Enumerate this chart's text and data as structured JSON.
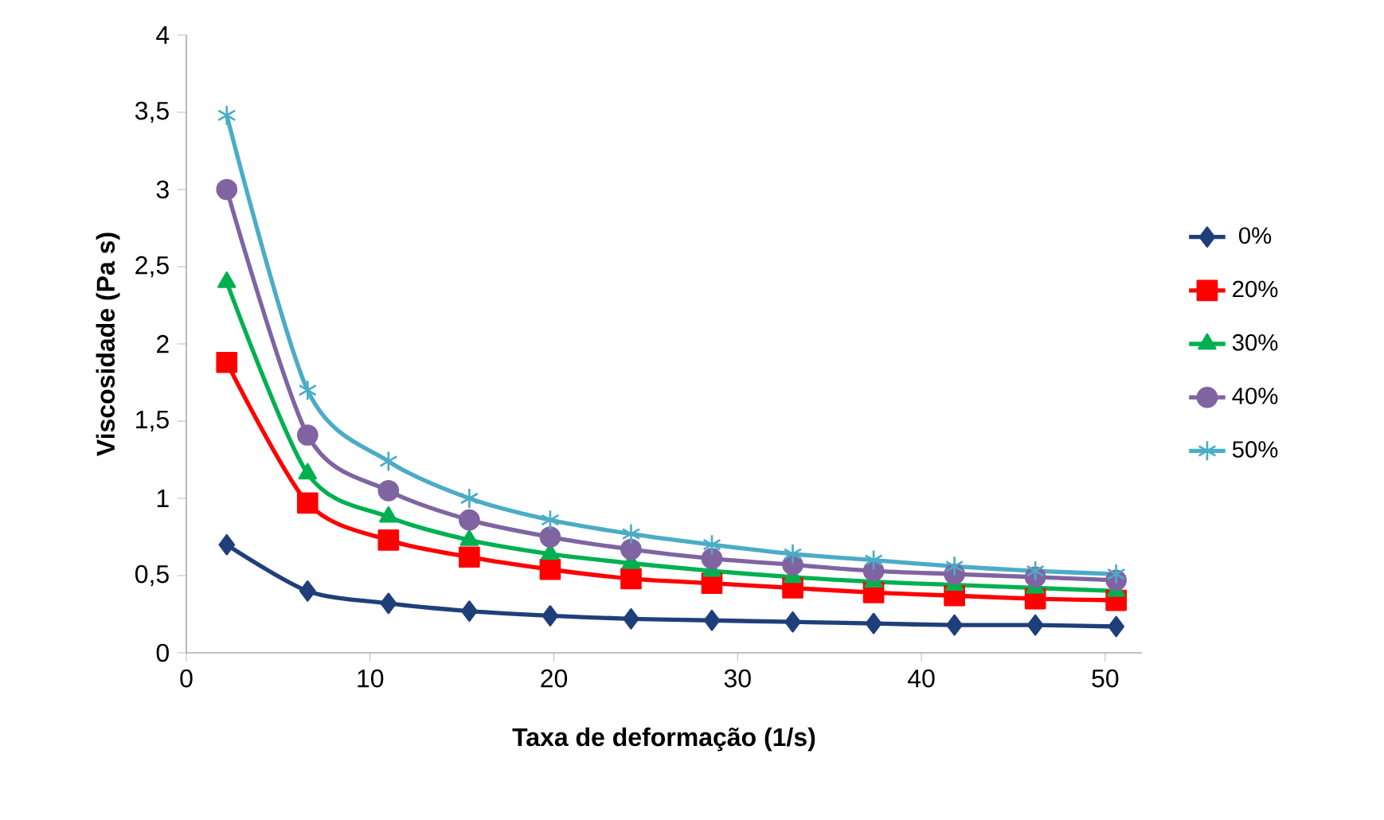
{
  "chart_data": {
    "type": "line",
    "xlabel": "Taxa de deformação (1/s)",
    "ylabel": "Viscosidade (Pa s)",
    "x": [
      2.2,
      6.6,
      11,
      15.4,
      19.8,
      24.2,
      28.6,
      33,
      37.4,
      41.8,
      46.2,
      50.6
    ],
    "series": [
      {
        "name": "0%",
        "color": "#1f3f7a",
        "marker": "diamond",
        "values": [
          0.7,
          0.4,
          0.32,
          0.27,
          0.24,
          0.22,
          0.21,
          0.2,
          0.19,
          0.18,
          0.18,
          0.17
        ]
      },
      {
        "name": "20%",
        "color": "#ff0000",
        "marker": "square",
        "values": [
          1.88,
          0.97,
          0.73,
          0.62,
          0.54,
          0.48,
          0.45,
          0.42,
          0.39,
          0.37,
          0.35,
          0.34
        ]
      },
      {
        "name": "30%",
        "color": "#00b050",
        "marker": "triangle",
        "values": [
          2.4,
          1.16,
          0.88,
          0.73,
          0.64,
          0.58,
          0.53,
          0.49,
          0.46,
          0.44,
          0.42,
          0.4
        ]
      },
      {
        "name": "40%",
        "color": "#8064a2",
        "marker": "circle",
        "values": [
          3.0,
          1.41,
          1.05,
          0.86,
          0.75,
          0.67,
          0.61,
          0.57,
          0.53,
          0.51,
          0.49,
          0.47
        ]
      },
      {
        "name": "50%",
        "color": "#4bacc6",
        "marker": "cross",
        "values": [
          3.48,
          1.7,
          1.24,
          1.0,
          0.86,
          0.77,
          0.7,
          0.64,
          0.6,
          0.56,
          0.53,
          0.51
        ]
      }
    ],
    "xlim": [
      0,
      52
    ],
    "xticks": [
      0,
      10,
      20,
      30,
      40,
      50
    ],
    "ylim": [
      0,
      4
    ],
    "yticks": [
      0,
      {
        "value": 0.5,
        "label": "0,5"
      },
      1,
      {
        "value": 1.5,
        "label": "1,5"
      },
      2,
      {
        "value": 2.5,
        "label": "2,5"
      },
      3,
      {
        "value": 3.5,
        "label": "3,5"
      },
      4
    ],
    "grid": false,
    "legend": "right"
  }
}
